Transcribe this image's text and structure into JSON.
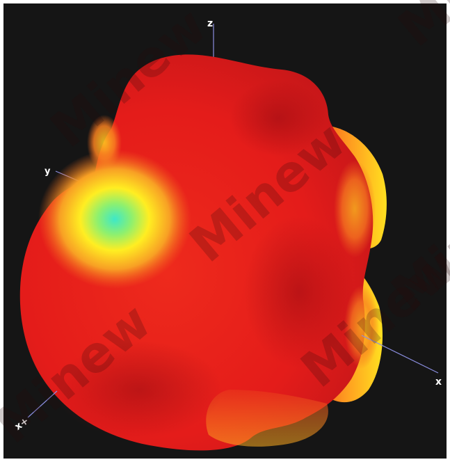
{
  "view": {
    "background_color": "#151515",
    "frame_color": "#ffffff",
    "axis_color": "#8b8ee0"
  },
  "axes": {
    "z_label": "z",
    "y_label": "y",
    "x_label": "x",
    "x_plus_label": "x+"
  },
  "surface": {
    "colors": {
      "red": "#e61e1c",
      "dark_red": "#b01216",
      "orange": "#f4661e",
      "yellow": "#ffee22",
      "green": "#8cf070",
      "cyan": "#3ee8c8"
    }
  },
  "watermark": {
    "text": "Minew"
  }
}
